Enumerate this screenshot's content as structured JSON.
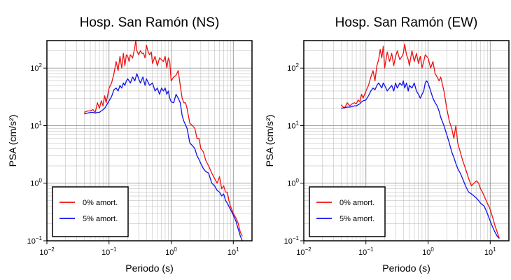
{
  "chart_data": [
    {
      "type": "line",
      "title": "Hosp. San Ramón (NS)",
      "xlabel": "Periodo (s)",
      "ylabel": "PSA (cm/s²)",
      "xscale": "log",
      "yscale": "log",
      "xlim": [
        0.01,
        20
      ],
      "ylim": [
        0.1,
        300
      ],
      "xticks": [
        {
          "base": "10",
          "exp": "−2",
          "value": 0.01
        },
        {
          "base": "10",
          "exp": "−1",
          "value": 0.1
        },
        {
          "base": "10",
          "exp": "0",
          "value": 1
        },
        {
          "base": "10",
          "exp": "1",
          "value": 10
        }
      ],
      "yticks": [
        {
          "base": "10",
          "exp": "−1",
          "value": 0.1
        },
        {
          "base": "10",
          "exp": "0",
          "value": 1
        },
        {
          "base": "10",
          "exp": "1",
          "value": 10
        },
        {
          "base": "10",
          "exp": "2",
          "value": 100
        }
      ],
      "grid": true,
      "legend_position": "bottom-left",
      "series": [
        {
          "name": "0% amort.",
          "color": "#ee1111",
          "x": [
            0.04,
            0.045,
            0.05,
            0.055,
            0.06,
            0.065,
            0.07,
            0.075,
            0.08,
            0.085,
            0.09,
            0.1,
            0.11,
            0.12,
            0.13,
            0.14,
            0.15,
            0.16,
            0.17,
            0.18,
            0.19,
            0.2,
            0.21,
            0.22,
            0.24,
            0.26,
            0.27,
            0.28,
            0.3,
            0.32,
            0.34,
            0.36,
            0.38,
            0.4,
            0.42,
            0.45,
            0.48,
            0.5,
            0.55,
            0.6,
            0.65,
            0.7,
            0.75,
            0.8,
            0.85,
            0.9,
            0.95,
            1.0,
            1.1,
            1.2,
            1.3,
            1.4,
            1.5,
            1.6,
            1.7,
            1.8,
            2.0,
            2.2,
            2.4,
            2.6,
            2.8,
            3.0,
            3.3,
            3.6,
            4.0,
            4.5,
            5.0,
            5.5,
            6.0,
            6.5,
            7.0,
            7.5,
            8.0,
            8.5,
            9.0,
            10.0,
            11.0,
            12.0,
            13.0,
            14.0
          ],
          "y": [
            17,
            18,
            18,
            19,
            17,
            25,
            20,
            27,
            22,
            33,
            25,
            45,
            55,
            80,
            130,
            90,
            160,
            100,
            180,
            110,
            170,
            160,
            130,
            170,
            150,
            230,
            300,
            200,
            170,
            200,
            180,
            180,
            150,
            250,
            200,
            170,
            190,
            120,
            160,
            110,
            150,
            140,
            130,
            160,
            100,
            150,
            130,
            60,
            70,
            75,
            90,
            50,
            30,
            25,
            25,
            20,
            11,
            10,
            9,
            6,
            6,
            4,
            3.5,
            2.5,
            2.0,
            1.5,
            1.2,
            1.0,
            1.3,
            0.8,
            0.9,
            0.7,
            0.7,
            0.5,
            0.4,
            0.3,
            0.25,
            0.2,
            0.14,
            0.12
          ]
        },
        {
          "name": "5% amort.",
          "color": "#1111ee",
          "x": [
            0.04,
            0.045,
            0.05,
            0.055,
            0.06,
            0.065,
            0.07,
            0.075,
            0.08,
            0.085,
            0.09,
            0.1,
            0.11,
            0.12,
            0.13,
            0.14,
            0.15,
            0.16,
            0.17,
            0.18,
            0.19,
            0.2,
            0.22,
            0.24,
            0.26,
            0.28,
            0.3,
            0.32,
            0.35,
            0.38,
            0.4,
            0.45,
            0.5,
            0.55,
            0.6,
            0.65,
            0.7,
            0.75,
            0.8,
            0.85,
            0.9,
            0.95,
            1.0,
            1.1,
            1.2,
            1.3,
            1.4,
            1.5,
            1.6,
            1.8,
            2.0,
            2.2,
            2.4,
            2.6,
            2.8,
            3.0,
            3.3,
            3.6,
            4.0,
            4.5,
            5.0,
            5.5,
            6.0,
            6.5,
            7.0,
            7.5,
            8.0,
            9.0,
            10.0,
            11.0,
            12.0,
            13.0,
            14.0
          ],
          "y": [
            16,
            16.5,
            17,
            17,
            16.5,
            17,
            17,
            18,
            19,
            20,
            22,
            27,
            32,
            42,
            45,
            40,
            50,
            45,
            55,
            50,
            60,
            65,
            55,
            70,
            60,
            80,
            65,
            55,
            70,
            50,
            65,
            50,
            55,
            40,
            45,
            35,
            45,
            40,
            45,
            35,
            40,
            30,
            26,
            25,
            35,
            30,
            25,
            15,
            12,
            9,
            5,
            4.5,
            4,
            3,
            2.6,
            2.2,
            1.8,
            1.6,
            1.5,
            1.0,
            0.9,
            0.75,
            0.7,
            0.6,
            0.65,
            0.5,
            0.45,
            0.35,
            0.28,
            0.22,
            0.16,
            0.12,
            0.1
          ]
        }
      ]
    },
    {
      "type": "line",
      "title": "Hosp. San Ramón (EW)",
      "xlabel": "Periodo (s)",
      "ylabel": "PSA (cm/s²)",
      "xscale": "log",
      "yscale": "log",
      "xlim": [
        0.01,
        20
      ],
      "ylim": [
        0.1,
        300
      ],
      "xticks": [
        {
          "base": "10",
          "exp": "−2",
          "value": 0.01
        },
        {
          "base": "10",
          "exp": "−1",
          "value": 0.1
        },
        {
          "base": "10",
          "exp": "0",
          "value": 1
        },
        {
          "base": "10",
          "exp": "1",
          "value": 10
        }
      ],
      "yticks": [
        {
          "base": "10",
          "exp": "−1",
          "value": 0.1
        },
        {
          "base": "10",
          "exp": "0",
          "value": 1
        },
        {
          "base": "10",
          "exp": "1",
          "value": 10
        },
        {
          "base": "10",
          "exp": "2",
          "value": 100
        }
      ],
      "grid": true,
      "legend_position": "bottom-left",
      "series": [
        {
          "name": "0% amort.",
          "color": "#ee1111",
          "x": [
            0.04,
            0.045,
            0.05,
            0.055,
            0.06,
            0.065,
            0.07,
            0.075,
            0.08,
            0.085,
            0.09,
            0.1,
            0.11,
            0.12,
            0.13,
            0.14,
            0.15,
            0.16,
            0.17,
            0.18,
            0.19,
            0.2,
            0.22,
            0.24,
            0.26,
            0.28,
            0.3,
            0.32,
            0.35,
            0.38,
            0.4,
            0.42,
            0.45,
            0.48,
            0.5,
            0.55,
            0.6,
            0.65,
            0.7,
            0.75,
            0.8,
            0.85,
            0.9,
            1.0,
            1.1,
            1.2,
            1.3,
            1.4,
            1.5,
            1.6,
            1.8,
            2.0,
            2.2,
            2.4,
            2.6,
            2.8,
            3.0,
            3.3,
            3.6,
            4.0,
            4.5,
            5.0,
            5.5,
            6.0,
            6.5,
            7.0,
            7.5,
            8.0,
            9.0,
            10.0,
            11.0,
            12.0,
            13.0,
            14.0
          ],
          "y": [
            23,
            20,
            25,
            22,
            24,
            25,
            24,
            28,
            26,
            35,
            30,
            40,
            50,
            70,
            90,
            60,
            110,
            140,
            210,
            150,
            240,
            100,
            190,
            130,
            180,
            110,
            160,
            200,
            140,
            160,
            180,
            260,
            170,
            140,
            110,
            200,
            130,
            180,
            120,
            160,
            100,
            130,
            170,
            150,
            100,
            130,
            80,
            70,
            60,
            70,
            40,
            20,
            12,
            9,
            6,
            10,
            5,
            3.5,
            2.5,
            1.8,
            1.2,
            0.9,
            1.0,
            1.1,
            1.0,
            0.8,
            0.7,
            0.6,
            0.45,
            0.35,
            0.25,
            0.18,
            0.14,
            0.11
          ]
        },
        {
          "name": "5% amort.",
          "color": "#1111ee",
          "x": [
            0.04,
            0.045,
            0.05,
            0.055,
            0.06,
            0.065,
            0.07,
            0.075,
            0.08,
            0.085,
            0.09,
            0.1,
            0.11,
            0.12,
            0.13,
            0.14,
            0.15,
            0.16,
            0.17,
            0.18,
            0.19,
            0.2,
            0.22,
            0.24,
            0.26,
            0.28,
            0.3,
            0.32,
            0.35,
            0.38,
            0.4,
            0.42,
            0.45,
            0.48,
            0.5,
            0.55,
            0.6,
            0.65,
            0.7,
            0.75,
            0.8,
            0.85,
            0.9,
            0.95,
            1.0,
            1.1,
            1.2,
            1.3,
            1.4,
            1.5,
            1.6,
            1.8,
            2.0,
            2.2,
            2.4,
            2.6,
            2.8,
            3.0,
            3.3,
            3.6,
            4.0,
            4.5,
            5.0,
            5.5,
            6.0,
            6.5,
            7.0,
            8.0,
            9.0,
            10.0,
            11.0,
            12.0,
            13.0,
            14.0
          ],
          "y": [
            20,
            20.5,
            21,
            21,
            21.5,
            22,
            22,
            23,
            24,
            26,
            27,
            28,
            33,
            40,
            45,
            42,
            50,
            55,
            50,
            45,
            55,
            50,
            40,
            45,
            50,
            40,
            55,
            45,
            55,
            50,
            60,
            45,
            55,
            40,
            50,
            45,
            55,
            40,
            35,
            30,
            35,
            40,
            55,
            60,
            55,
            40,
            30,
            25,
            22,
            18,
            14,
            10,
            7,
            5,
            3.5,
            2.8,
            2.2,
            1.8,
            1.5,
            1.2,
            0.9,
            0.7,
            0.65,
            0.6,
            0.55,
            0.5,
            0.45,
            0.4,
            0.3,
            0.22,
            0.17,
            0.14,
            0.12,
            0.11
          ]
        }
      ]
    }
  ]
}
